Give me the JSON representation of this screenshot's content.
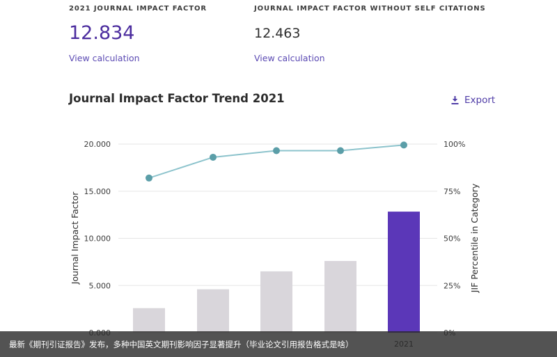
{
  "metrics": [
    {
      "label": "2021 JOURNAL IMPACT FACTOR",
      "value": "12.834",
      "link": "View calculation"
    },
    {
      "label": "JOURNAL IMPACT FACTOR WITHOUT SELF CITATIONS",
      "value": "12.463",
      "link": "View calculation"
    }
  ],
  "section": {
    "title": "Journal Impact Factor Trend 2021",
    "export_label": "Export",
    "export_icon": "download-icon"
  },
  "colors": {
    "accent": "#4b2c9e",
    "bar": "#d9d6db",
    "bar_highlight": "#5b37b8",
    "line": "#8cc3cc",
    "marker": "#5b9ea8"
  },
  "chart_data": {
    "type": "bar",
    "title": "Journal Impact Factor Trend 2021",
    "categories": [
      "",
      "",
      "",
      "",
      "2021"
    ],
    "series": [
      {
        "name": "Journal Impact Factor",
        "type": "bar",
        "axis": "left",
        "values": [
          2.6,
          4.6,
          6.5,
          7.6,
          12.834
        ]
      },
      {
        "name": "JIF Percentile in Category",
        "type": "line",
        "axis": "right",
        "values": [
          82,
          93,
          96.5,
          96.5,
          99.5
        ]
      }
    ],
    "ylabel": "Journal Impact Factor",
    "y2label": "JIF Percentile in Category",
    "ylim": [
      0,
      20
    ],
    "y2lim": [
      0,
      100
    ],
    "yticks": [
      "0.000",
      "5.000",
      "10.000",
      "15.000",
      "20.000"
    ],
    "y2ticks": [
      "0%",
      "25%",
      "50%",
      "75%",
      "100%"
    ],
    "grid": true,
    "legend": "none"
  },
  "caption": "最新《期刊引证报告》发布，多种中国英文期刊影响因子显著提升（毕业论文引用报告格式是啥）"
}
